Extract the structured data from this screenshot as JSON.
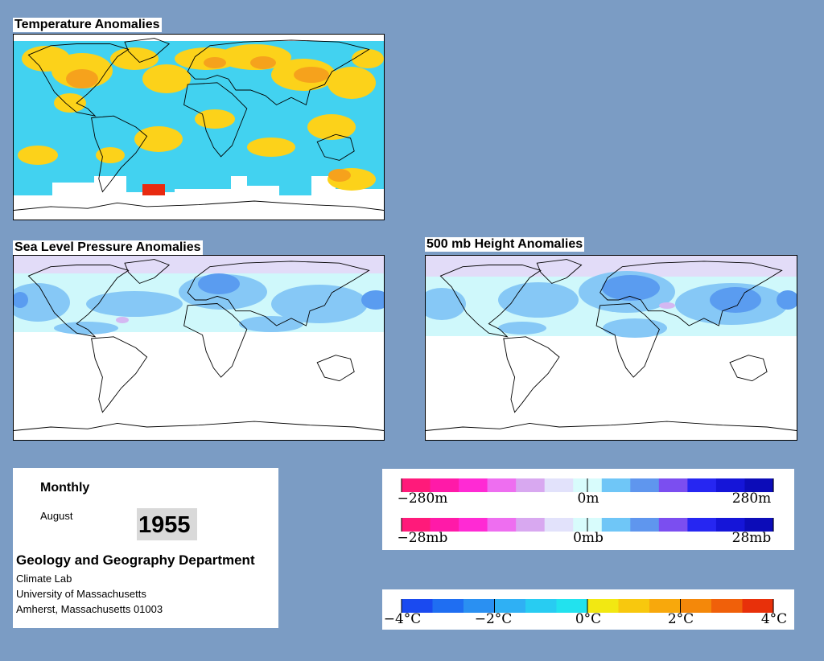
{
  "panels": {
    "temperature": {
      "title": "Temperature Anomalies"
    },
    "slp": {
      "title": "Sea Level Pressure Anomalies"
    },
    "height": {
      "title": "500 mb Height Anomalies"
    }
  },
  "info": {
    "period": "Monthly",
    "month": "August",
    "year": "1955",
    "department": "Geology and Geography Department",
    "lab": "Climate Lab",
    "university": "University of Massachusetts",
    "address": "Amherst, Massachusetts 01003"
  },
  "legend_height": {
    "labels": [
      "−280m",
      "0m",
      "280m"
    ],
    "colors": [
      "#ff1a7a",
      "#ff1aa8",
      "#ff2ad4",
      "#ee6ef0",
      "#d8a8f0",
      "#e2e2fb",
      "#d8fcfc",
      "#6fc6f7",
      "#5f96ee",
      "#7b4ef0",
      "#2626f2",
      "#1515d8",
      "#0c0cb8"
    ]
  },
  "legend_pressure": {
    "labels": [
      "−28mb",
      "0mb",
      "28mb"
    ],
    "colors": [
      "#ff1a7a",
      "#ff1aa8",
      "#ff2ad4",
      "#ee6ef0",
      "#d8a8f0",
      "#e2e2fb",
      "#d8fcfc",
      "#6fc6f7",
      "#5f96ee",
      "#7b4ef0",
      "#2626f2",
      "#1515d8",
      "#0c0cb8"
    ]
  },
  "legend_temperature": {
    "labels": [
      "−4°C",
      "−2°C",
      "0°C",
      "2°C",
      "4°C"
    ],
    "colors": [
      "#1a4af0",
      "#1f6ef2",
      "#2a90f2",
      "#2fb0f4",
      "#28ccf2",
      "#22e2ee",
      "#f2e812",
      "#f8c80e",
      "#f8a80c",
      "#f4880a",
      "#f0600a",
      "#e8300a"
    ]
  },
  "map_colors": {
    "ocean": "#ffffff",
    "coast": "#000000",
    "warm": "#fcd21a",
    "warmer": "#f6a21c",
    "hot": "#e82a10",
    "cool": "#42d2f0",
    "cooler": "#7ec4f4",
    "pale_cyan": "#cff8fb",
    "light_blue": "#86c8f6",
    "mid_blue": "#5a9cf0",
    "violet": "#d4b8f2",
    "lavender": "#e2dcf8"
  }
}
